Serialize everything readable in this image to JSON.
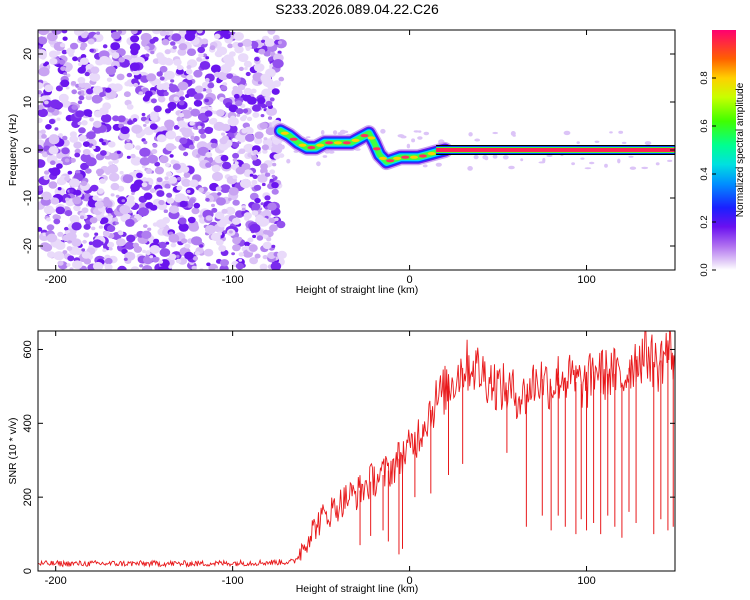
{
  "title": "S233.2026.089.04.22.C26",
  "colors": {
    "snr_line": "#e8191b",
    "axis": "#000000",
    "spectrogram_background": "#ffffff",
    "track_outline": "#000000"
  },
  "chart_data": [
    {
      "type": "heatmap",
      "name": "spectrogram",
      "xlabel": "Height of straight line (km)",
      "ylabel": "Frequency (Hz)",
      "xlim": [
        -210,
        150
      ],
      "ylim": [
        -25,
        25
      ],
      "xticks": [
        -200,
        -100,
        0,
        100
      ],
      "yticks": [
        -20,
        -10,
        0,
        10,
        20
      ],
      "colorbar": {
        "label": "Normalized spectral amplitude",
        "range": [
          0,
          1
        ],
        "ticks": [
          0.0,
          0.2,
          0.4,
          0.6,
          0.8
        ],
        "colormap": [
          "#ffffff",
          "#d8b8f4",
          "#8a2be2",
          "#5a10f0",
          "#0030ff",
          "#00c0ff",
          "#00ffa0",
          "#40ff00",
          "#ffff00",
          "#ff8000",
          "#ff0060"
        ]
      },
      "noise_region_x": [
        -210,
        -72
      ],
      "signal_track": {
        "x": [
          -73,
          -68,
          -63,
          -58,
          -53,
          -48,
          -43,
          -38,
          -33,
          -28,
          -23,
          -20,
          -17,
          -13,
          -9,
          -5,
          0,
          5,
          10,
          15,
          20,
          150
        ],
        "y": [
          4,
          3,
          1.5,
          0.5,
          0.5,
          1.5,
          1.5,
          1.5,
          1.5,
          2.5,
          3.5,
          1.5,
          -1.0,
          -2.5,
          -2.0,
          -1.5,
          -1.5,
          -1.5,
          -1.0,
          -0.5,
          0.0,
          0.0
        ]
      }
    },
    {
      "type": "line",
      "name": "snr",
      "xlabel": "Height of straight line (km)",
      "ylabel": "SNR (10 * v/v)",
      "xlim": [
        -210,
        150
      ],
      "ylim": [
        0,
        650
      ],
      "xticks": [
        -200,
        -100,
        0,
        100
      ],
      "yticks": [
        0,
        200,
        400,
        600
      ],
      "series": [
        {
          "name": "SNR",
          "x": [
            -210,
            -180,
            -150,
            -120,
            -90,
            -65,
            -60,
            -55,
            -50,
            -45,
            -40,
            -35,
            -30,
            -25,
            -20,
            -15,
            -10,
            -5,
            0,
            5,
            10,
            15,
            20,
            25,
            30,
            35,
            40,
            45,
            50,
            55,
            60,
            65,
            70,
            75,
            80,
            85,
            90,
            95,
            100,
            105,
            110,
            115,
            120,
            125,
            130,
            135,
            140,
            145,
            150
          ],
          "y": [
            20,
            20,
            20,
            20,
            22,
            25,
            70,
            110,
            140,
            160,
            180,
            200,
            210,
            230,
            250,
            260,
            280,
            310,
            330,
            370,
            420,
            460,
            490,
            520,
            550,
            560,
            540,
            520,
            500,
            490,
            480,
            470,
            510,
            520,
            500,
            530,
            520,
            510,
            500,
            550,
            530,
            540,
            510,
            560,
            580,
            590,
            550,
            600,
            580
          ]
        }
      ],
      "dropouts": {
        "x": [
          -28,
          -22,
          -15,
          -12,
          -6,
          -4,
          3,
          12,
          22,
          30,
          55,
          66,
          75,
          80,
          84,
          88,
          94,
          97,
          100,
          104,
          108,
          112,
          116,
          120,
          124,
          128,
          138,
          142,
          146,
          149
        ],
        "y": [
          70,
          95,
          110,
          80,
          45,
          60,
          200,
          210,
          260,
          290,
          320,
          120,
          150,
          110,
          150,
          120,
          100,
          140,
          110,
          130,
          100,
          150,
          120,
          90,
          160,
          130,
          100,
          140,
          110,
          120
        ]
      }
    }
  ]
}
